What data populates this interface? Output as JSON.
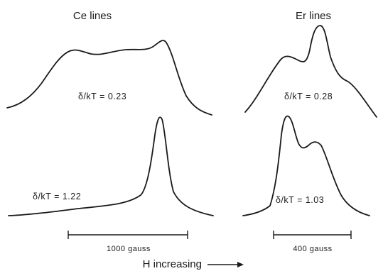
{
  "panels": {
    "ce": {
      "title": "Ce lines"
    },
    "er": {
      "title": "Er lines"
    }
  },
  "curves": [
    {
      "group": "Ce lines",
      "label": "δ/kT = 0.23",
      "shape": "broad triple-hump line"
    },
    {
      "group": "Ce lines",
      "label": "δ/kT = 1.22",
      "shape": "single sharp peak with low shoulder"
    },
    {
      "group": "Er lines",
      "label": "δ/kT = 0.28",
      "shape": "shoulder plus dominant central peak"
    },
    {
      "group": "Er lines",
      "label": "δ/kT = 1.03",
      "shape": "sharp peak followed by secondary peak"
    }
  ],
  "scale_bars": {
    "ce": {
      "label": "1000 gauss",
      "gauss": 1000
    },
    "er": {
      "label": "400 gauss",
      "gauss": 400
    }
  },
  "x_axis": {
    "label": "H increasing",
    "arrow": "right-arrow"
  },
  "chart_data": {
    "type": "line",
    "title": "",
    "xlabel": "H increasing",
    "ylabel": "",
    "grid": false,
    "legend": "none",
    "groups": [
      "Ce lines",
      "Er lines"
    ],
    "series": [
      {
        "group": "Ce lines",
        "name": "δ/kT = 0.23"
      },
      {
        "group": "Ce lines",
        "name": "δ/kT = 1.22"
      },
      {
        "group": "Er lines",
        "name": "δ/kT = 0.28"
      },
      {
        "group": "Er lines",
        "name": "δ/kT = 1.03"
      }
    ],
    "scale_bars_gauss": {
      "Ce lines": 1000,
      "Er lines": 400
    }
  }
}
